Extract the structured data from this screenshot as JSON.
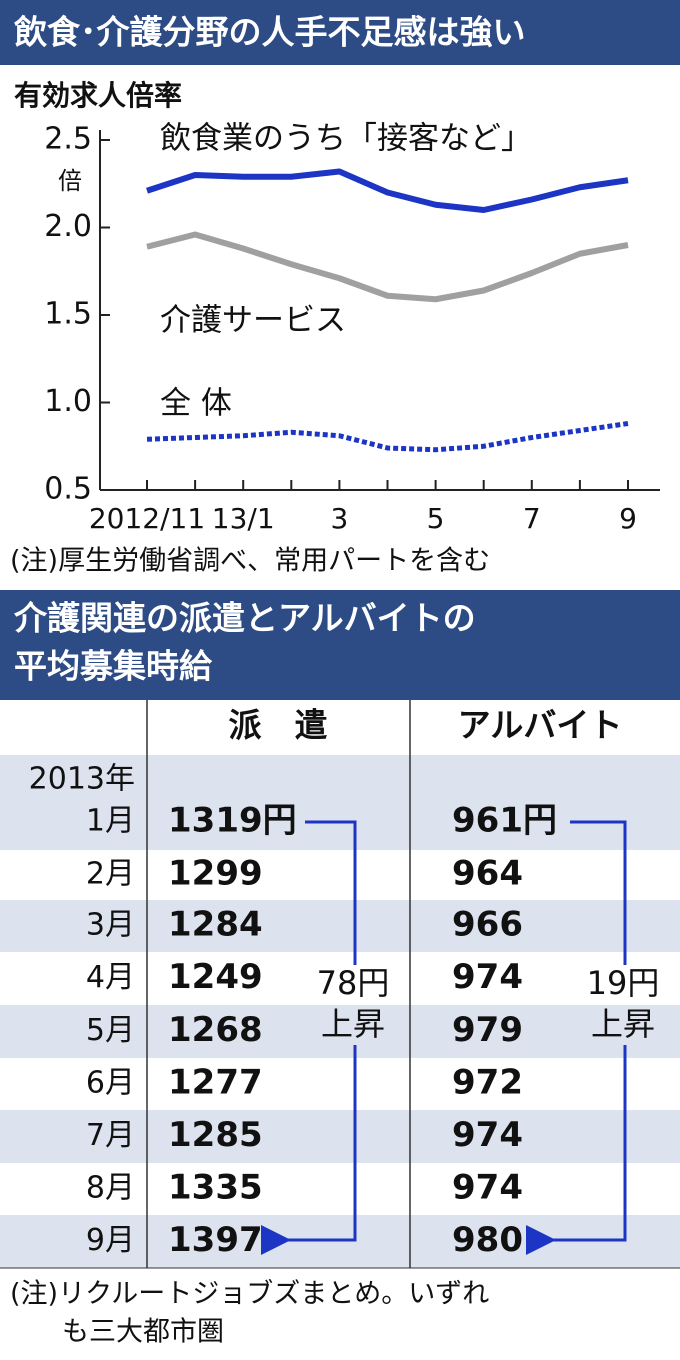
{
  "header": {
    "title": "飲食･介護分野の人手不足感は強い"
  },
  "chart_data": {
    "type": "line",
    "ylabel": "有効求人倍率",
    "y_unit": "倍",
    "categories": [
      "2012/11",
      null,
      "13/1",
      null,
      "3",
      null,
      "5",
      null,
      "7",
      null,
      "9"
    ],
    "series": [
      {
        "name": "飲食業のうち「接客など」",
        "color": "#1c35c4",
        "style": "solid",
        "values": [
          2.21,
          2.3,
          2.29,
          2.29,
          2.32,
          2.2,
          2.13,
          2.1,
          2.16,
          2.23,
          2.27
        ]
      },
      {
        "name": "介護サービス",
        "color": "#a0a0a0",
        "style": "solid",
        "values": [
          1.89,
          1.96,
          1.88,
          1.79,
          1.71,
          1.61,
          1.59,
          1.64,
          1.74,
          1.85,
          1.9
        ]
      },
      {
        "name": "全 体",
        "color": "#1c35c4",
        "style": "dotted",
        "values": [
          0.79,
          0.8,
          0.81,
          0.83,
          0.81,
          0.74,
          0.73,
          0.75,
          0.8,
          0.84,
          0.88
        ]
      }
    ],
    "ylim": [
      0.5,
      2.5
    ],
    "yticks": [
      0.5,
      {
        "value": 1,
        "label": "1.0"
      },
      1.5,
      {
        "value": 2,
        "label": "2.0"
      },
      2.5
    ],
    "note": "(注)厚生労働省調べ、常用パートを含む"
  },
  "table": {
    "title": [
      "介護関連の派遣とアルバイトの",
      "平均募集時給"
    ],
    "columns": [
      "派　遣",
      "アルバイト"
    ],
    "year": "2013年",
    "rows": [
      [
        "1月",
        "1319円",
        "961円"
      ],
      [
        "2月",
        "1299",
        "964"
      ],
      [
        "3月",
        "1284",
        "966"
      ],
      [
        "4月",
        "1249",
        "974"
      ],
      [
        "5月",
        "1268",
        "979"
      ],
      [
        "6月",
        "1277",
        "972"
      ],
      [
        "7月",
        "1285",
        "974"
      ],
      [
        "8月",
        "1335",
        "974"
      ],
      [
        "9月",
        "1397",
        "980"
      ]
    ],
    "annotations": [
      [
        "78円",
        "上昇"
      ],
      [
        "19円",
        "上昇"
      ]
    ],
    "note": [
      "(注)リクルートジョブズまとめ。いずれ",
      "も三大都市圏"
    ]
  }
}
